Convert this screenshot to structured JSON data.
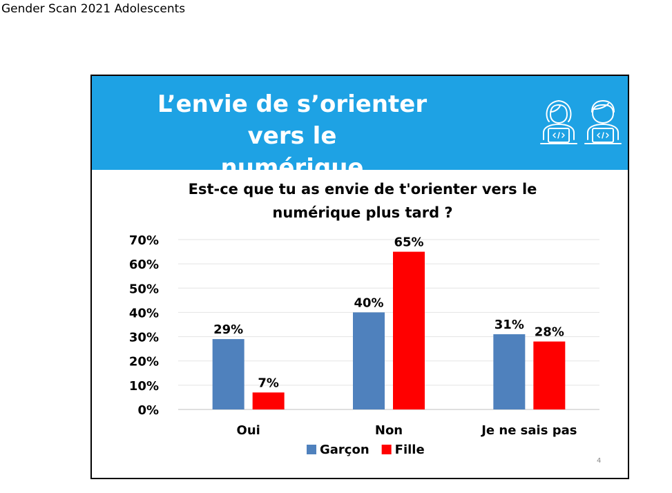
{
  "doc_header": "Gender Scan 2021 Adolescents",
  "banner": {
    "title_line1": "L’envie de s’orienter vers le",
    "title_line2": "numérique",
    "color": "#1ea2e4",
    "icons": [
      "female-developer-icon",
      "male-developer-icon"
    ]
  },
  "page_number": "4",
  "chart_data": {
    "type": "bar",
    "title_line1": "Est-ce que tu as envie de t'orienter vers le",
    "title_line2": "numérique plus tard ?",
    "categories": [
      "Oui",
      "Non",
      "Je ne sais pas"
    ],
    "series": [
      {
        "name": "Garçon",
        "color": "#4f81bd",
        "values": [
          29,
          40,
          31
        ],
        "labels": [
          "29%",
          "40%",
          "31%"
        ]
      },
      {
        "name": "Fille",
        "color": "#ff0000",
        "values": [
          7,
          65,
          28
        ],
        "labels": [
          "7%",
          "65%",
          "28%"
        ]
      }
    ],
    "ylim": [
      0,
      70
    ],
    "yticks": [
      0,
      10,
      20,
      30,
      40,
      50,
      60,
      70
    ],
    "ytick_labels": [
      "0%",
      "10%",
      "20%",
      "30%",
      "40%",
      "50%",
      "60%",
      "70%"
    ],
    "xlabel": "",
    "ylabel": "",
    "grid": true,
    "legend_position": "bottom"
  }
}
